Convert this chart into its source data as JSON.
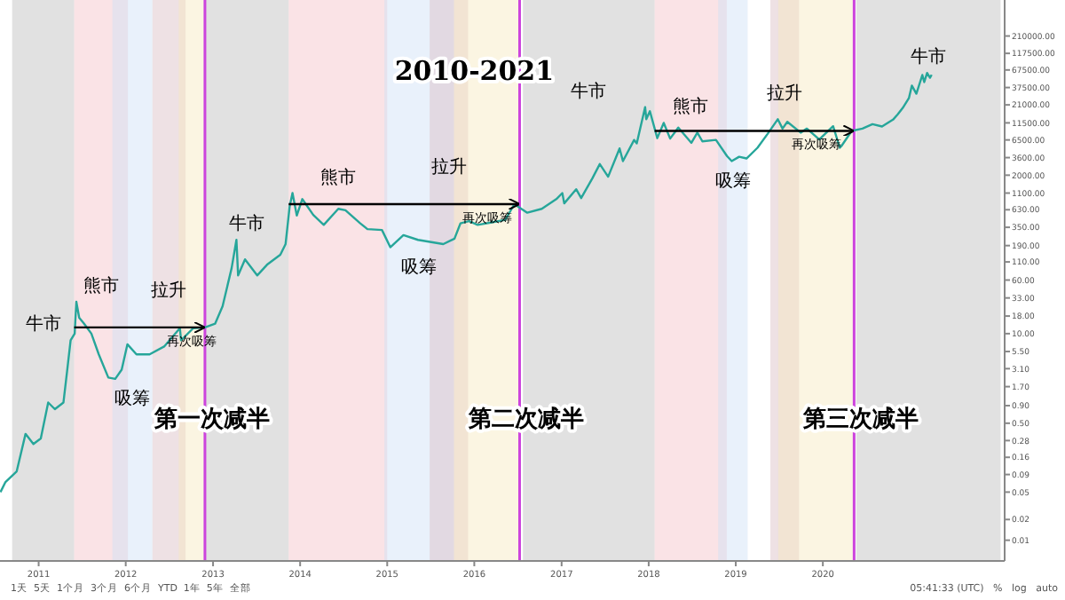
{
  "chart_data": {
    "type": "line",
    "title": "2010-2021",
    "log": "y",
    "grid": false,
    "marker": "none",
    "line_style": "solid",
    "xlim": [
      "2010-07-23",
      "2022-02-01"
    ],
    "xticks": [
      {
        "value": "2011-01-01",
        "label": "2011"
      },
      {
        "value": "2012-01-01",
        "label": "2012"
      },
      {
        "value": "2013-01-01",
        "label": "2013"
      },
      {
        "value": "2014-01-01",
        "label": "2014"
      },
      {
        "value": "2015-01-01",
        "label": "2015"
      },
      {
        "value": "2016-01-01",
        "label": "2016"
      },
      {
        "value": "2017-01-01",
        "label": "2017"
      },
      {
        "value": "2018-01-01",
        "label": "2018"
      },
      {
        "value": "2019-01-01",
        "label": "2019"
      },
      {
        "value": "2020-01-01",
        "label": "2020"
      }
    ],
    "ylim": [
      0.005,
      700000
    ],
    "yticks": [
      0.01,
      0.02,
      0.05,
      0.09,
      0.16,
      0.28,
      {
        "value": 0.5,
        "label": "0.50"
      },
      {
        "value": 0.9,
        "label": "0.90"
      },
      {
        "value": 1.7,
        "label": "1.70"
      },
      {
        "value": 3.1,
        "label": "3.10"
      },
      {
        "value": 5.5,
        "label": "5.50"
      },
      {
        "value": 10,
        "label": "10.00"
      },
      {
        "value": 18,
        "label": "18.00"
      },
      {
        "value": 33,
        "label": "33.00"
      },
      {
        "value": 60,
        "label": "60.00"
      },
      {
        "value": 110,
        "label": "110.00"
      },
      {
        "value": 190,
        "label": "190.00"
      },
      {
        "value": 350,
        "label": "350.00"
      },
      {
        "value": 630,
        "label": "630.00"
      },
      {
        "value": 1100,
        "label": "1100.00"
      },
      {
        "value": 2000,
        "label": "2000.00"
      },
      {
        "value": 3600,
        "label": "3600.00"
      },
      {
        "value": 6500,
        "label": "6500.00"
      },
      {
        "value": 11500,
        "label": "11500.00"
      },
      {
        "value": 21000,
        "label": "21000.00"
      },
      {
        "value": 37500,
        "label": "37500.00"
      },
      {
        "value": 67500,
        "label": "67500.00"
      },
      {
        "value": 117500,
        "label": "117500.00"
      },
      {
        "value": 210000,
        "label": "210000.00"
      }
    ],
    "series": [
      {
        "color": "#26a69a",
        "x": [
          "2010-07-25",
          "2010-08-15",
          "2010-10-01",
          "2010-11-07",
          "2010-12-10",
          "2011-01-10",
          "2011-02-10",
          "2011-03-10",
          "2011-04-15",
          "2011-05-01",
          "2011-05-15",
          "2011-06-01",
          "2011-06-08",
          "2011-06-20",
          "2011-07-10",
          "2011-08-10",
          "2011-09-10",
          "2011-10-20",
          "2011-11-18",
          "2011-12-15",
          "2012-01-08",
          "2012-02-15",
          "2012-04-10",
          "2012-06-10",
          "2012-08-15",
          "2012-08-20",
          "2012-10-10",
          "2012-11-28",
          "2013-01-10",
          "2013-02-10",
          "2013-03-20",
          "2013-04-09",
          "2013-04-16",
          "2013-05-15",
          "2013-07-05",
          "2013-08-15",
          "2013-10-10",
          "2013-11-01",
          "2013-11-18",
          "2013-11-30",
          "2013-12-18",
          "2014-01-10",
          "2014-02-25",
          "2014-04-10",
          "2014-06-10",
          "2014-07-10",
          "2014-09-10",
          "2014-10-10",
          "2014-12-10",
          "2015-01-14",
          "2015-03-10",
          "2015-05-10",
          "2015-08-24",
          "2015-10-10",
          "2015-11-04",
          "2015-12-10",
          "2016-01-15",
          "2016-03-10",
          "2016-05-10",
          "2016-06-17",
          "2016-08-10",
          "2016-10-10",
          "2016-12-10",
          "2017-01-04",
          "2017-01-12",
          "2017-03-03",
          "2017-03-24",
          "2017-05-10",
          "2017-06-10",
          "2017-07-15",
          "2017-09-01",
          "2017-09-15",
          "2017-11-01",
          "2017-11-12",
          "2017-12-17",
          "2017-12-22",
          "2018-01-06",
          "2018-02-06",
          "2018-03-05",
          "2018-04-01",
          "2018-05-05",
          "2018-06-29",
          "2018-07-24",
          "2018-08-14",
          "2018-10-10",
          "2018-11-25",
          "2018-12-15",
          "2019-01-15",
          "2019-02-15",
          "2019-04-02",
          "2019-05-15",
          "2019-06-26",
          "2019-07-16",
          "2019-08-05",
          "2019-09-30",
          "2019-10-26",
          "2019-12-17",
          "2020-02-13",
          "2020-03-12",
          "2020-03-19",
          "2020-05-01",
          "2020-06-15",
          "2020-07-27",
          "2020-09-05",
          "2020-10-21",
          "2020-11-10",
          "2020-12-01",
          "2020-12-27",
          "2021-01-08",
          "2021-01-27",
          "2021-02-21",
          "2021-03-01",
          "2021-03-13",
          "2021-03-25",
          "2021-04-01"
        ],
        "values": [
          0.05,
          0.07,
          0.1,
          0.35,
          0.25,
          0.3,
          1,
          0.8,
          1,
          3,
          8,
          10,
          29,
          17,
          14,
          10,
          5,
          2.3,
          2.2,
          3,
          7,
          5,
          5,
          6.5,
          12,
          8,
          12,
          12.3,
          14,
          25,
          90,
          230,
          70,
          120,
          70,
          100,
          140,
          200,
          700,
          1100,
          520,
          900,
          530,
          380,
          650,
          620,
          400,
          330,
          320,
          180,
          270,
          230,
          200,
          240,
          400,
          430,
          380,
          410,
          450,
          760,
          570,
          650,
          900,
          1100,
          780,
          1250,
          930,
          1800,
          2900,
          1900,
          4900,
          3200,
          6500,
          5800,
          19500,
          13000,
          17000,
          6900,
          11500,
          6800,
          9800,
          5900,
          8300,
          6200,
          6500,
          3800,
          3200,
          3700,
          3500,
          5000,
          8000,
          13000,
          9500,
          11900,
          8300,
          9500,
          6600,
          10300,
          5000,
          5300,
          8800,
          9500,
          11000,
          10200,
          12800,
          15300,
          19000,
          26500,
          40000,
          30500,
          57000,
          45000,
          61000,
          52000,
          57501.96
        ]
      }
    ],
    "ref_lines": [
      {
        "axis": "x",
        "value": "2012-11-28",
        "label": "第一次减半",
        "color": "#cc44dd"
      },
      {
        "axis": "x",
        "value": "2016-07-09",
        "label": "第二次减半",
        "color": "#cc44dd"
      },
      {
        "axis": "x",
        "value": "2020-05-11",
        "label": "第三次减半",
        "color": "#cc44dd"
      }
    ],
    "bands": [
      {
        "axis": "x",
        "from": "2010-09-12",
        "to": "2011-05-30",
        "label": "牛市",
        "color": "#bdbdbd"
      },
      {
        "axis": "x",
        "from": "2011-05-30",
        "to": "2012-01-10",
        "label": "熊市",
        "color": "#f4c2c7"
      },
      {
        "axis": "x",
        "from": "2011-11-06",
        "to": "2012-04-22",
        "label": "吸筹",
        "color": "#cfe0f7"
      },
      {
        "axis": "x",
        "from": "2012-04-22",
        "to": "2012-09-08",
        "label": "拉升",
        "color": "#d9bcc4"
      },
      {
        "axis": "x",
        "from": "2012-08-10",
        "to": "2012-11-28",
        "label": "再次吸筹",
        "color": "#f7e8bf"
      },
      {
        "axis": "x",
        "from": "2012-11-28",
        "to": "2013-11-14",
        "label": "牛市",
        "color": "#bdbdbd"
      },
      {
        "axis": "x",
        "from": "2013-11-14",
        "to": "2015-01-01",
        "label": "熊市",
        "color": "#f4c2c7"
      },
      {
        "axis": "x",
        "from": "2014-12-20",
        "to": "2015-10-08",
        "label": "吸筹",
        "color": "#cfe0f7"
      },
      {
        "axis": "x",
        "from": "2015-06-28",
        "to": "2015-12-06",
        "label": "拉升",
        "color": "#d9bcc4"
      },
      {
        "axis": "x",
        "from": "2015-10-08",
        "to": "2016-07-09",
        "label": "再次吸筹",
        "color": "#f7e8bf"
      },
      {
        "axis": "x",
        "from": "2016-07-23",
        "to": "2018-01-26",
        "label": "牛市",
        "color": "#bdbdbd"
      },
      {
        "axis": "x",
        "from": "2018-01-26",
        "to": "2018-11-24",
        "label": "熊市",
        "color": "#f4c2c7"
      },
      {
        "axis": "x",
        "from": "2018-10-19",
        "to": "2019-02-20",
        "label": "吸筹",
        "color": "#cfe0f7"
      },
      {
        "axis": "x",
        "from": "2019-05-26",
        "to": "2019-09-23",
        "label": "拉升",
        "color": "#d9bcc4"
      },
      {
        "axis": "x",
        "from": "2019-06-28",
        "to": "2020-05-11",
        "label": "再次吸筹",
        "color": "#f7e8bf"
      },
      {
        "axis": "x",
        "from": "2020-05-20",
        "to": "2022-01-15",
        "label": "牛市",
        "color": "#bdbdbd"
      }
    ],
    "annotations": [
      "1天  5天  1个月  3个月  6个月  YTD  1年  5年  全部",
      "05:41:33 (UTC)   %   log   auto"
    ]
  }
}
